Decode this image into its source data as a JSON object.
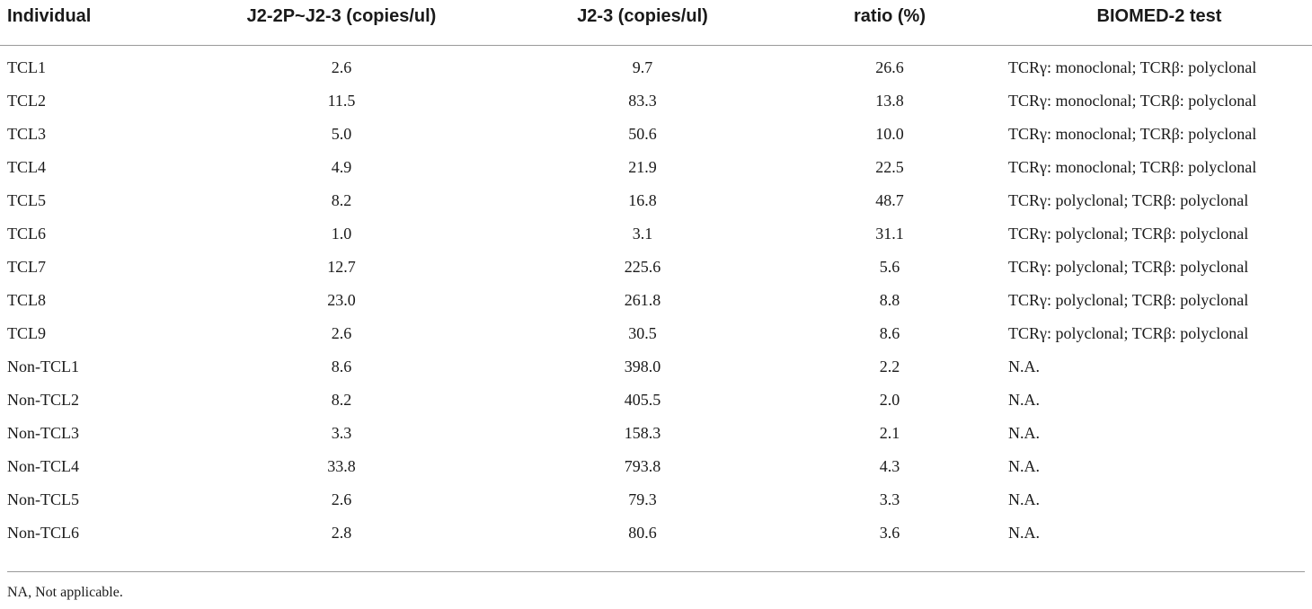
{
  "table": {
    "headers": [
      "Individual",
      "J2-2P~J2-3 (copies/ul)",
      "J2-3 (copies/ul)",
      "ratio (%)",
      "BIOMED-2 test"
    ],
    "rows": [
      [
        "TCL1",
        "2.6",
        "9.7",
        "26.6",
        "TCRγ: monoclonal; TCRβ: polyclonal"
      ],
      [
        "TCL2",
        "11.5",
        "83.3",
        "13.8",
        "TCRγ: monoclonal; TCRβ: polyclonal"
      ],
      [
        "TCL3",
        "5.0",
        "50.6",
        "10.0",
        "TCRγ: monoclonal; TCRβ: polyclonal"
      ],
      [
        "TCL4",
        "4.9",
        "21.9",
        "22.5",
        "TCRγ: monoclonal; TCRβ: polyclonal"
      ],
      [
        "TCL5",
        "8.2",
        "16.8",
        "48.7",
        "TCRγ: polyclonal; TCRβ: polyclonal"
      ],
      [
        "TCL6",
        "1.0",
        "3.1",
        "31.1",
        "TCRγ: polyclonal; TCRβ: polyclonal"
      ],
      [
        "TCL7",
        "12.7",
        "225.6",
        "5.6",
        "TCRγ: polyclonal; TCRβ: polyclonal"
      ],
      [
        "TCL8",
        "23.0",
        "261.8",
        "8.8",
        "TCRγ: polyclonal; TCRβ: polyclonal"
      ],
      [
        "TCL9",
        "2.6",
        "30.5",
        "8.6",
        "TCRγ: polyclonal; TCRβ: polyclonal"
      ],
      [
        "Non-TCL1",
        "8.6",
        "398.0",
        "2.2",
        "N.A."
      ],
      [
        "Non-TCL2",
        "8.2",
        "405.5",
        "2.0",
        "N.A."
      ],
      [
        "Non-TCL3",
        "3.3",
        "158.3",
        "2.1",
        "N.A."
      ],
      [
        "Non-TCL4",
        "33.8",
        "793.8",
        "4.3",
        "N.A."
      ],
      [
        "Non-TCL5",
        "2.6",
        "79.3",
        "3.3",
        "N.A."
      ],
      [
        "Non-TCL6",
        "2.8",
        "80.6",
        "3.6",
        "N.A."
      ]
    ]
  },
  "footnote": "NA, Not applicable."
}
